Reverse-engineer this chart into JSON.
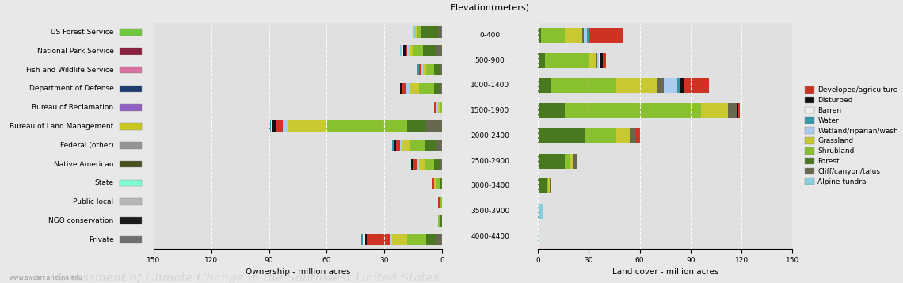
{
  "ownership_categories": [
    "Private",
    "NGO conservation",
    "Public local",
    "State",
    "Native American",
    "Federal (other)",
    "Bureau of Land Management",
    "Bureau of Reclamation",
    "Department of Defense",
    "Fish and Wildlife Service",
    "National Park Service",
    "US Forest Service"
  ],
  "ownership_legend_colors": {
    "Private": "#6e6e6e",
    "NGO conservation": "#1a1a1a",
    "Public local": "#b4b4b4",
    "State": "#7fffd4",
    "Native American": "#4a5020",
    "Federal (other)": "#949494",
    "Bureau of Land Management": "#c8c820",
    "Bureau of Reclamation": "#9060c0",
    "Department of Defense": "#1e3a6e",
    "Fish and Wildlife Service": "#d870a0",
    "National Park Service": "#882040",
    "US Forest Service": "#70c840"
  },
  "landcover_categories": [
    "Developed/agriculture",
    "Disturbed",
    "Barren",
    "Water",
    "Wetland/riparian/wash",
    "Grassland",
    "Shrubland",
    "Forest",
    "Cliff/canyon/talus",
    "Alpine tundra"
  ],
  "landcover_colors": {
    "Developed/agriculture": "#cc3322",
    "Disturbed": "#111111",
    "Barren": "#f0eeea",
    "Water": "#3399aa",
    "Wetland/riparian/wash": "#aaccee",
    "Grassland": "#c8c830",
    "Shrubland": "#88c030",
    "Forest": "#4a7820",
    "Cliff/canyon/talus": "#686850",
    "Alpine tundra": "#88ccdd"
  },
  "elevation_bands": [
    "4000-4400",
    "3500-3900",
    "3000-3400",
    "2500-2900",
    "2000-2400",
    "1500-1900",
    "1000-1400",
    "500-900",
    "0-400"
  ],
  "ownership_by_agency": {
    "Private": [
      0,
      0,
      0,
      0,
      0,
      0,
      0,
      0,
      0,
      0,
      0,
      0,
      0,
      0,
      0,
      0,
      0,
      0,
      5,
      0,
      0,
      0,
      0,
      0,
      44,
      0,
      0,
      0,
      0,
      0,
      13,
      0,
      0,
      0,
      0,
      0,
      6,
      0,
      0,
      0,
      0,
      0,
      3,
      0,
      0,
      0,
      0,
      0,
      2,
      0,
      0,
      0,
      0,
      0
    ],
    "NGO conservation": [
      0,
      0,
      0,
      0,
      0,
      0,
      0,
      0,
      0,
      0,
      0,
      0,
      0,
      0,
      0,
      0,
      0,
      0,
      0,
      0,
      0,
      0,
      0,
      0,
      2,
      0,
      0,
      0,
      0,
      0,
      2,
      0,
      0,
      0,
      0,
      0,
      1,
      0,
      0,
      0,
      0,
      0,
      0,
      0,
      0,
      0,
      0,
      0,
      0,
      0,
      0,
      0,
      0,
      0
    ],
    "Public local": [
      0,
      0,
      0,
      0,
      0,
      0,
      0,
      0,
      0,
      0,
      0,
      0,
      0,
      0,
      0,
      0,
      0,
      0,
      0,
      0,
      0,
      0,
      0,
      0,
      1,
      0,
      0,
      0,
      0,
      0,
      2,
      0,
      0,
      0,
      0,
      0,
      1,
      0,
      0,
      0,
      0,
      0,
      1,
      0,
      0,
      0,
      0,
      0,
      1,
      0,
      0,
      0,
      0,
      0
    ],
    "State": [
      0,
      0,
      0,
      0,
      0,
      0,
      0,
      0,
      0,
      0,
      0,
      0,
      0,
      0,
      0,
      0,
      0,
      0,
      0,
      0,
      0,
      0,
      0,
      0,
      2,
      0,
      0,
      0,
      0,
      0,
      4,
      0,
      0,
      0,
      0,
      0,
      2,
      0,
      0,
      0,
      0,
      0,
      1,
      0,
      0,
      0,
      0,
      0,
      1,
      0,
      0,
      0,
      0,
      0
    ],
    "Native American": [
      0,
      0,
      0,
      0,
      0,
      0,
      0,
      0,
      0,
      0,
      0,
      0,
      0,
      0,
      0,
      0,
      0,
      0,
      1,
      0,
      1,
      0,
      1,
      1,
      10,
      0,
      1,
      1,
      1,
      1,
      12,
      1,
      1,
      1,
      1,
      1,
      5,
      1,
      1,
      1,
      1,
      1,
      2,
      0,
      1,
      0,
      0,
      0,
      0,
      0,
      0,
      0,
      0,
      0
    ],
    "Federal (other)": [
      0,
      0,
      0,
      0,
      0,
      0,
      0,
      0,
      0,
      0,
      0,
      0,
      0,
      0,
      0,
      0,
      0,
      0,
      2,
      0,
      0,
      0,
      0,
      0,
      22,
      0,
      0,
      0,
      0,
      0,
      10,
      0,
      0,
      0,
      0,
      0,
      4,
      0,
      0,
      0,
      0,
      0,
      2,
      0,
      0,
      0,
      0,
      0,
      1,
      0,
      0,
      0,
      0,
      0
    ],
    "Bureau of Land Management": [
      0,
      0,
      0,
      0,
      0,
      0,
      0,
      0,
      0,
      0,
      0,
      0,
      0,
      0,
      0,
      0,
      0,
      0,
      2,
      0,
      2,
      0,
      2,
      2,
      15,
      2,
      2,
      2,
      2,
      2,
      65,
      2,
      2,
      2,
      2,
      2,
      28,
      2,
      2,
      2,
      2,
      2,
      8,
      1,
      1,
      1,
      1,
      1,
      5,
      0,
      1,
      0,
      0,
      0
    ],
    "Bureau of Reclamation": [
      0,
      0,
      0,
      0,
      0,
      0,
      0,
      0,
      0,
      0,
      0,
      0,
      0,
      0,
      0,
      0,
      0,
      0,
      0,
      0,
      0,
      0,
      0,
      0,
      1,
      0,
      0,
      0,
      0,
      0,
      2,
      0,
      0,
      0,
      0,
      0,
      1,
      0,
      0,
      0,
      0,
      0,
      0,
      0,
      0,
      0,
      0,
      0,
      0,
      0,
      0,
      0,
      0,
      0
    ],
    "Department of Defense": [
      0,
      0,
      0,
      0,
      0,
      0,
      0,
      0,
      0,
      0,
      0,
      0,
      0,
      0,
      0,
      0,
      0,
      0,
      0,
      0,
      0,
      0,
      0,
      0,
      1,
      0,
      0,
      0,
      0,
      0,
      4,
      0,
      0,
      0,
      0,
      0,
      17,
      0,
      0,
      0,
      0,
      0,
      2,
      0,
      0,
      0,
      0,
      0,
      0,
      0,
      0,
      0,
      0,
      0
    ],
    "Fish and Wildlife Service": [
      0,
      0,
      0,
      0,
      0,
      0,
      0,
      0,
      0,
      0,
      0,
      0,
      0,
      0,
      0,
      0,
      0,
      0,
      0,
      0,
      0,
      0,
      0,
      0,
      1,
      0,
      0,
      0,
      0,
      0,
      3,
      0,
      0,
      0,
      0,
      0,
      6,
      0,
      0,
      0,
      0,
      0,
      3,
      1,
      0,
      0,
      0,
      0,
      0,
      0,
      0,
      0,
      0,
      0
    ],
    "National Park Service": [
      0,
      0,
      0,
      0,
      0,
      0,
      0,
      0,
      0,
      0,
      0,
      0,
      0,
      0,
      0,
      0,
      0,
      0,
      0,
      0,
      0,
      0,
      0,
      0,
      1,
      0,
      0,
      0,
      0,
      0,
      2,
      0,
      0,
      0,
      0,
      0,
      11,
      1,
      0,
      0,
      0,
      0,
      2,
      0,
      1,
      0,
      0,
      0,
      5,
      1,
      0,
      0,
      0,
      0
    ],
    "US Forest Service": [
      0,
      0,
      0,
      0,
      0,
      0,
      0,
      0,
      0,
      0,
      0,
      0,
      1,
      0,
      0,
      0,
      0,
      0,
      2,
      0,
      0,
      0,
      0,
      0,
      8,
      0,
      0,
      0,
      0,
      0,
      3,
      0,
      0,
      0,
      0,
      0,
      2,
      0,
      0,
      0,
      0,
      0,
      1,
      0,
      0,
      0,
      0,
      0,
      0,
      0,
      0,
      0,
      0,
      0
    ]
  },
  "ownership_totals": {
    "Private": 44,
    "NGO conservation": 2,
    "Public local": 3,
    "State": 5,
    "Native American": 18,
    "Federal (other)": 26,
    "Bureau of Land Management": 92,
    "Bureau of Reclamation": 4,
    "Department of Defense": 22,
    "Fish and Wildlife Service": 13,
    "National Park Service": 22,
    "US Forest Service": 16
  },
  "ownership_lc_breakdown": {
    "Private": {
      "Cliff/canyon/talus": 3,
      "Shrubland": 10,
      "Grassland": 8,
      "Forest": 5,
      "Wetland/riparian/wash": 1,
      "Developed/agriculture": 12,
      "Disturbed": 1,
      "Barren": 1,
      "Water": 1,
      "Alpine tundra": 0
    },
    "NGO conservation": {
      "Cliff/canyon/talus": 0,
      "Shrubland": 1,
      "Grassland": 0,
      "Forest": 1,
      "Wetland/riparian/wash": 0,
      "Developed/agriculture": 0,
      "Disturbed": 0,
      "Barren": 0,
      "Water": 0,
      "Alpine tundra": 0
    },
    "Public local": {
      "Cliff/canyon/talus": 0,
      "Shrubland": 1,
      "Grassland": 0,
      "Forest": 0,
      "Wetland/riparian/wash": 0,
      "Developed/agriculture": 1,
      "Disturbed": 0,
      "Barren": 0,
      "Water": 0,
      "Alpine tundra": 0
    },
    "State": {
      "Cliff/canyon/talus": 0,
      "Shrubland": 2,
      "Grassland": 1,
      "Forest": 1,
      "Wetland/riparian/wash": 0,
      "Developed/agriculture": 1,
      "Disturbed": 0,
      "Barren": 0,
      "Water": 0,
      "Alpine tundra": 0
    },
    "Native American": {
      "Cliff/canyon/talus": 1,
      "Shrubland": 5,
      "Grassland": 3,
      "Forest": 3,
      "Wetland/riparian/wash": 1,
      "Developed/agriculture": 2,
      "Disturbed": 1,
      "Barren": 0,
      "Water": 0,
      "Alpine tundra": 0
    },
    "Federal (other)": {
      "Cliff/canyon/talus": 3,
      "Shrubland": 8,
      "Grassland": 4,
      "Forest": 6,
      "Wetland/riparian/wash": 1,
      "Developed/agriculture": 2,
      "Disturbed": 1,
      "Barren": 0,
      "Water": 1,
      "Alpine tundra": 0
    },
    "Bureau of Land Management": {
      "Cliff/canyon/talus": 8,
      "Shrubland": 42,
      "Grassland": 20,
      "Forest": 10,
      "Wetland/riparian/wash": 3,
      "Developed/agriculture": 3,
      "Disturbed": 2,
      "Barren": 1,
      "Water": 1,
      "Alpine tundra": 0
    },
    "Bureau of Reclamation": {
      "Cliff/canyon/talus": 0,
      "Shrubland": 1,
      "Grassland": 1,
      "Forest": 0,
      "Wetland/riparian/wash": 1,
      "Developed/agriculture": 1,
      "Disturbed": 0,
      "Barren": 0,
      "Water": 0,
      "Alpine tundra": 0
    },
    "Department of Defense": {
      "Cliff/canyon/talus": 1,
      "Shrubland": 8,
      "Grassland": 5,
      "Forest": 3,
      "Wetland/riparian/wash": 2,
      "Developed/agriculture": 2,
      "Disturbed": 1,
      "Barren": 0,
      "Water": 0,
      "Alpine tundra": 0
    },
    "Fish and Wildlife Service": {
      "Cliff/canyon/talus": 1,
      "Shrubland": 4,
      "Grassland": 2,
      "Forest": 3,
      "Wetland/riparian/wash": 1,
      "Developed/agriculture": 1,
      "Disturbed": 0,
      "Barren": 0,
      "Water": 1,
      "Alpine tundra": 0
    },
    "National Park Service": {
      "Cliff/canyon/talus": 3,
      "Shrubland": 5,
      "Grassland": 2,
      "Forest": 7,
      "Wetland/riparian/wash": 1,
      "Developed/agriculture": 1,
      "Disturbed": 1,
      "Barren": 1,
      "Water": 0,
      "Alpine tundra": 1
    },
    "US Forest Service": {
      "Cliff/canyon/talus": 2,
      "Shrubland": 2,
      "Grassland": 1,
      "Forest": 9,
      "Wetland/riparian/wash": 0,
      "Developed/agriculture": 0,
      "Disturbed": 0,
      "Barren": 0,
      "Water": 0,
      "Alpine tundra": 1
    }
  },
  "elevation_lc_breakdown": {
    "4000-4400": {
      "Alpine tundra": 1,
      "Cliff/canyon/talus": 0,
      "Forest": 0,
      "Shrubland": 0,
      "Grassland": 0,
      "Wetland/riparian/wash": 0,
      "Water": 0,
      "Barren": 0,
      "Disturbed": 0,
      "Developed/agriculture": 0
    },
    "3500-3900": {
      "Alpine tundra": 2,
      "Cliff/canyon/talus": 0,
      "Forest": 0,
      "Shrubland": 0,
      "Grassland": 0,
      "Wetland/riparian/wash": 0,
      "Water": 1,
      "Barren": 0,
      "Disturbed": 0,
      "Developed/agriculture": 0
    },
    "3000-3400": {
      "Alpine tundra": 0,
      "Cliff/canyon/talus": 1,
      "Forest": 5,
      "Shrubland": 1,
      "Grassland": 1,
      "Wetland/riparian/wash": 0,
      "Water": 0,
      "Barren": 0,
      "Disturbed": 0,
      "Developed/agriculture": 0
    },
    "2500-2900": {
      "Alpine tundra": 0,
      "Cliff/canyon/talus": 2,
      "Forest": 16,
      "Shrubland": 3,
      "Grassland": 2,
      "Wetland/riparian/wash": 0,
      "Water": 0,
      "Barren": 0,
      "Disturbed": 0,
      "Developed/agriculture": 0
    },
    "2000-2400": {
      "Alpine tundra": 0,
      "Cliff/canyon/talus": 4,
      "Forest": 28,
      "Shrubland": 18,
      "Grassland": 8,
      "Wetland/riparian/wash": 0,
      "Water": 0,
      "Barren": 0,
      "Disturbed": 0,
      "Developed/agriculture": 2
    },
    "1500-1900": {
      "Alpine tundra": 0,
      "Cliff/canyon/talus": 5,
      "Forest": 16,
      "Shrubland": 80,
      "Grassland": 16,
      "Wetland/riparian/wash": 0,
      "Water": 0,
      "Barren": 0,
      "Disturbed": 1,
      "Developed/agriculture": 1
    },
    "1000-1400": {
      "Alpine tundra": 0,
      "Cliff/canyon/talus": 4,
      "Forest": 8,
      "Shrubland": 38,
      "Grassland": 24,
      "Wetland/riparian/wash": 8,
      "Water": 2,
      "Barren": 0,
      "Disturbed": 2,
      "Developed/agriculture": 15
    },
    "500-900": {
      "Alpine tundra": 0,
      "Cliff/canyon/talus": 1,
      "Forest": 4,
      "Shrubland": 26,
      "Grassland": 4,
      "Wetland/riparian/wash": 1,
      "Water": 0,
      "Barren": 1,
      "Disturbed": 1,
      "Developed/agriculture": 2
    },
    "0-400": {
      "Alpine tundra": 0,
      "Cliff/canyon/talus": 1,
      "Forest": 2,
      "Shrubland": 14,
      "Grassland": 10,
      "Wetland/riparian/wash": 2,
      "Water": 1,
      "Barren": 0,
      "Disturbed": 0,
      "Developed/agriculture": 20
    }
  },
  "bg_color": "#e8e8e8",
  "plot_bg": "#e0e0e0",
  "title": "Elevation(meters)",
  "left_xlabel": "Ownership - million acres",
  "right_xlabel": "Land cover - million acres"
}
